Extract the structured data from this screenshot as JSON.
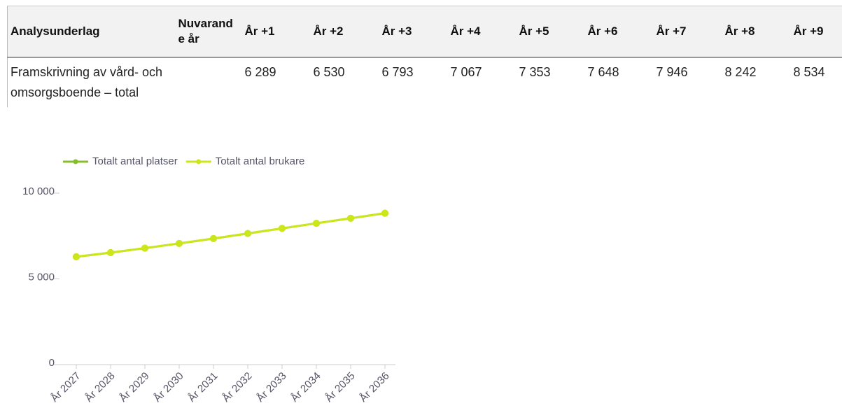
{
  "table": {
    "header": [
      "Analysunderlag",
      "Nuvarande år",
      "År +1",
      "År +2",
      "År +3",
      "År +4",
      "År +5",
      "År +6",
      "År +7",
      "År +8",
      "År +9"
    ],
    "rows": [
      [
        "Framskrivning av vård- och omsorgsboende – total",
        null,
        "6 289",
        "6 530",
        "6 793",
        "7 067",
        "7 353",
        "7 648",
        "7 946",
        "8 242",
        "8 534"
      ]
    ]
  },
  "chart_data": {
    "type": "line",
    "categories": [
      "År 2027",
      "År 2028",
      "År 2029",
      "År 2030",
      "År 2031",
      "År 2032",
      "År 2033",
      "År 2034",
      "År 2035",
      "År 2036"
    ],
    "series": [
      {
        "name": "Totalt antal platser",
        "color": "#86bd2a",
        "values": [
          6289,
          6530,
          6793,
          7067,
          7353,
          7648,
          7946,
          8242,
          8534,
          8830
        ]
      },
      {
        "name": "Totalt antal brukare",
        "color": "#cde61a",
        "values": [
          6289,
          6530,
          6793,
          7067,
          7353,
          7648,
          7946,
          8242,
          8534,
          8830
        ]
      }
    ],
    "ylim": [
      0,
      12000
    ],
    "yticks": [
      0,
      {
        "value": 5000,
        "label": "5 000"
      },
      {
        "value": 10000,
        "label": "10 000"
      }
    ],
    "legend": "top"
  }
}
